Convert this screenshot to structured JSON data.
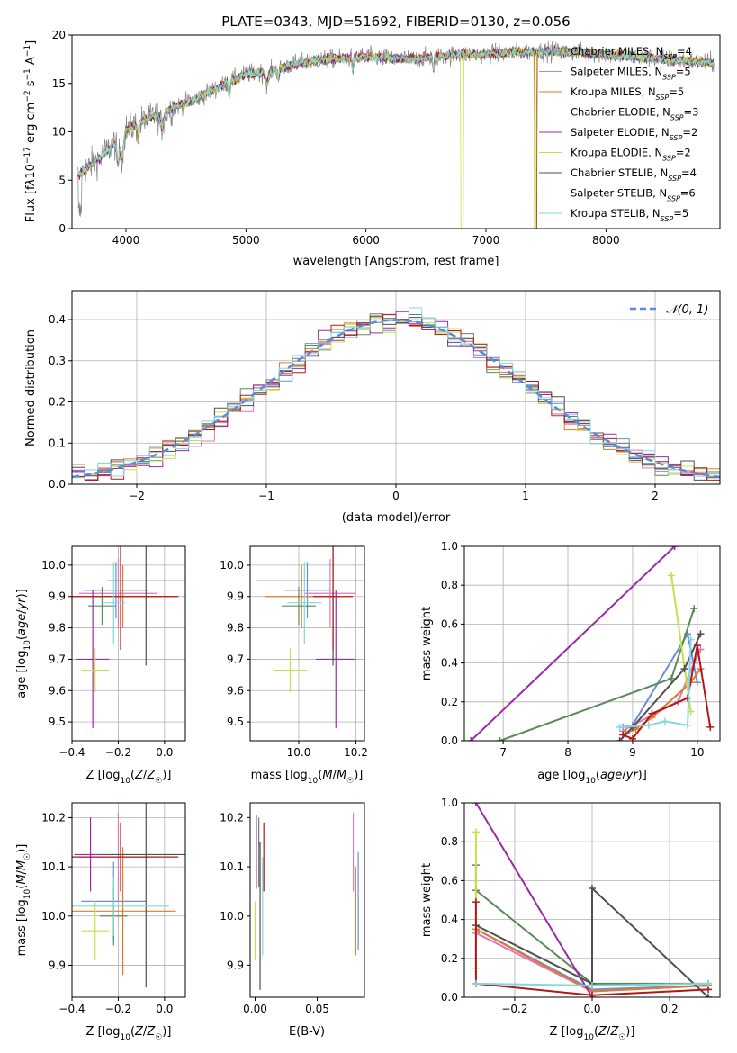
{
  "palette": [
    "#6a8fd6",
    "#e07ab8",
    "#e07a28",
    "#5a8a5a",
    "#9b2aa8",
    "#c8e048",
    "#505050",
    "#b01818",
    "#80d8e0"
  ],
  "chart_data": [
    {
      "id": "spectrum",
      "type": "line",
      "title": "PLATE=0343, MJD=51692, FIBERID=0130, z=0.056",
      "xlabel": "wavelength [Angstrom, rest frame]",
      "ylabel": "Flux [fλ10^-17 erg cm^-2 s^-1 A^-1]",
      "xlim": [
        3550,
        8950
      ],
      "ylim": [
        0,
        20
      ],
      "xticks": [
        4000,
        5000,
        6000,
        7000,
        8000
      ],
      "yticks": [
        0,
        5,
        10,
        15,
        20
      ],
      "legend_position": "right",
      "legend": [
        "Chabrier MILES, N_SSP=4",
        "Salpeter MILES, N_SSP=5",
        "Kroupa MILES, N_SSP=5",
        "Chabrier ELODIE, N_SSP=3",
        "Salpeter ELODIE, N_SSP=2",
        "Kroupa ELODIE, N_SSP=2",
        "Chabrier STELIB, N_SSP=4",
        "Salpeter STELIB, N_SSP=6",
        "Kroupa STELIB, N_SSP=5"
      ],
      "continuum": [
        [
          3600,
          5.5
        ],
        [
          3700,
          6.5
        ],
        [
          3800,
          7.5
        ],
        [
          3900,
          8.8
        ],
        [
          4000,
          10.2
        ],
        [
          4200,
          11.5
        ],
        [
          4400,
          12.5
        ],
        [
          4600,
          13.5
        ],
        [
          4800,
          14.8
        ],
        [
          5000,
          16.0
        ],
        [
          5200,
          16.2
        ],
        [
          5400,
          17.0
        ],
        [
          5600,
          17.4
        ],
        [
          5800,
          17.6
        ],
        [
          6000,
          17.8
        ],
        [
          6200,
          17.6
        ],
        [
          6400,
          17.5
        ],
        [
          6600,
          17.8
        ],
        [
          6800,
          18.0
        ],
        [
          7000,
          18.0
        ],
        [
          7200,
          18.2
        ],
        [
          7400,
          18.3
        ],
        [
          7600,
          18.3
        ],
        [
          7800,
          18.2
        ],
        [
          8000,
          18.0
        ],
        [
          8200,
          17.8
        ],
        [
          8400,
          17.6
        ],
        [
          8600,
          17.4
        ],
        [
          8800,
          17.2
        ],
        [
          8900,
          17.1
        ]
      ]
    },
    {
      "id": "residuals",
      "type": "histogram",
      "xlabel": "(data-model)/error",
      "ylabel": "Normed distribution",
      "xlim": [
        -2.5,
        2.5
      ],
      "ylim": [
        0,
        0.47
      ],
      "xticks": [
        -2,
        -1,
        0,
        1,
        2
      ],
      "yticks": [
        0.0,
        0.1,
        0.2,
        0.3,
        0.4
      ],
      "grid": true,
      "legend": [
        "𝒩(0, 1)"
      ],
      "legend_position": "top-right",
      "bin_width": 0.1
    },
    {
      "id": "age-vs-Z",
      "type": "errorbar",
      "xlabel": "Z [log10(Z/Z☉)]",
      "ylabel": "age [log10(age/yr)]",
      "xlim": [
        -0.4,
        0.09
      ],
      "ylim": [
        9.44,
        10.06
      ],
      "xticks": [
        -0.4,
        -0.2,
        0.0
      ],
      "yticks": [
        9.5,
        9.6,
        9.7,
        9.8,
        9.9,
        10.0
      ],
      "grid": true,
      "points": [
        {
          "x": -0.21,
          "xerr": 0.14,
          "y": 9.92,
          "yerr": 0.09
        },
        {
          "x": -0.2,
          "xerr": 0.17,
          "y": 9.91,
          "yerr": 0.11
        },
        {
          "x": -0.18,
          "xerr": 0.23,
          "y": 9.9,
          "yerr": 0.1
        },
        {
          "x": -0.27,
          "xerr": 0.06,
          "y": 9.87,
          "yerr": 0.06
        },
        {
          "x": -0.31,
          "xerr": 0.07,
          "y": 9.7,
          "yerr": 0.22
        },
        {
          "x": -0.3,
          "xerr": 0.06,
          "y": 9.665,
          "yerr": 0.07
        },
        {
          "x": -0.08,
          "xerr": 0.17,
          "y": 9.95,
          "yerr": 0.27
        },
        {
          "x": -0.19,
          "xerr": 0.25,
          "y": 9.9,
          "yerr": 0.17
        },
        {
          "x": -0.22,
          "xerr": 0.05,
          "y": 9.88,
          "yerr": 0.13
        }
      ]
    },
    {
      "id": "age-vs-mass",
      "type": "errorbar",
      "xlabel": "mass [log10(M/M☉)]",
      "ylabel": "",
      "xlim": [
        9.83,
        10.23
      ],
      "ylim": [
        9.44,
        10.06
      ],
      "xticks": [
        10.0,
        10.2
      ],
      "yticks": [
        9.5,
        9.6,
        9.7,
        9.8,
        9.9,
        10.0
      ],
      "grid": true,
      "points": [
        {
          "x": 10.03,
          "xerr": 0.08,
          "y": 9.92,
          "yerr": 0.09
        },
        {
          "x": 10.11,
          "xerr": 0.09,
          "y": 9.91,
          "yerr": 0.11
        },
        {
          "x": 10.01,
          "xerr": 0.13,
          "y": 9.9,
          "yerr": 0.1
        },
        {
          "x": 10.0,
          "xerr": 0.06,
          "y": 9.87,
          "yerr": 0.06
        },
        {
          "x": 10.13,
          "xerr": 0.07,
          "y": 9.7,
          "yerr": 0.22
        },
        {
          "x": 9.97,
          "xerr": 0.06,
          "y": 9.665,
          "yerr": 0.07
        },
        {
          "x": 10.12,
          "xerr": 0.27,
          "y": 9.95,
          "yerr": 0.27
        },
        {
          "x": 10.12,
          "xerr": 0.07,
          "y": 9.9,
          "yerr": 0.17
        },
        {
          "x": 10.02,
          "xerr": 0.06,
          "y": 9.88,
          "yerr": 0.13
        }
      ]
    },
    {
      "id": "weight-vs-age",
      "type": "line",
      "xlabel": "age [log10(age/yr)]",
      "ylabel": "mass weight",
      "xlim": [
        6.4,
        10.35
      ],
      "ylim": [
        0,
        1.0
      ],
      "xticks": [
        7,
        8,
        9,
        10
      ],
      "yticks": [
        0.0,
        0.2,
        0.4,
        0.6,
        0.8,
        1.0
      ],
      "grid": true,
      "series": [
        {
          "points": [
            [
              8.85,
              0.07
            ],
            [
              9.0,
              0.08
            ],
            [
              9.85,
              0.55
            ],
            [
              10.0,
              0.3
            ]
          ]
        },
        {
          "points": [
            [
              8.85,
              0.05
            ],
            [
              9.0,
              0.08
            ],
            [
              9.7,
              0.2
            ],
            [
              9.95,
              0.4
            ],
            [
              10.05,
              0.47
            ]
          ]
        },
        {
          "points": [
            [
              8.9,
              0.04
            ],
            [
              9.05,
              0.06
            ],
            [
              9.3,
              0.12
            ],
            [
              9.9,
              0.3
            ],
            [
              10.05,
              0.37
            ]
          ]
        },
        {
          "points": [
            [
              6.95,
              0.0
            ],
            [
              9.6,
              0.32
            ],
            [
              9.95,
              0.68
            ]
          ]
        },
        {
          "points": [
            [
              6.5,
              0.0
            ],
            [
              9.65,
              1.0
            ]
          ]
        },
        {
          "points": [
            [
              9.6,
              0.85
            ],
            [
              9.9,
              0.15
            ]
          ]
        },
        {
          "points": [
            [
              8.8,
              0.0
            ],
            [
              9.0,
              0.07
            ],
            [
              9.8,
              0.37
            ],
            [
              10.05,
              0.55
            ]
          ]
        },
        {
          "points": [
            [
              8.85,
              0.03
            ],
            [
              9.0,
              0.01
            ],
            [
              9.3,
              0.14
            ],
            [
              9.85,
              0.22
            ],
            [
              10.0,
              0.49
            ],
            [
              10.2,
              0.07
            ]
          ]
        },
        {
          "points": [
            [
              8.8,
              0.07
            ],
            [
              9.25,
              0.08
            ],
            [
              9.5,
              0.1
            ],
            [
              9.85,
              0.08
            ],
            [
              9.9,
              0.52
            ]
          ]
        }
      ]
    },
    {
      "id": "mass-vs-Z",
      "type": "errorbar",
      "xlabel": "Z [log10(Z/Z☉)]",
      "ylabel": "mass [log10(M/M☉)]",
      "xlim": [
        -0.4,
        0.09
      ],
      "ylim": [
        9.835,
        10.23
      ],
      "xticks": [
        -0.4,
        -0.2,
        0.0
      ],
      "yticks": [
        9.9,
        10.0,
        10.1,
        10.2
      ],
      "grid": true,
      "points": [
        {
          "x": -0.22,
          "xerr": 0.14,
          "y": 10.03,
          "yerr": 0.08
        },
        {
          "x": -0.2,
          "xerr": 0.17,
          "y": 10.12,
          "yerr": 0.09
        },
        {
          "x": -0.18,
          "xerr": 0.23,
          "y": 10.01,
          "yerr": 0.13
        },
        {
          "x": -0.22,
          "xerr": 0.06,
          "y": 10.0,
          "yerr": 0.06
        },
        {
          "x": -0.32,
          "xerr": 0.07,
          "y": 10.125,
          "yerr": 0.075
        },
        {
          "x": -0.3,
          "xerr": 0.06,
          "y": 9.97,
          "yerr": 0.06
        },
        {
          "x": -0.08,
          "xerr": 0.17,
          "y": 10.125,
          "yerr": 0.27
        },
        {
          "x": -0.19,
          "xerr": 0.25,
          "y": 10.12,
          "yerr": 0.07
        },
        {
          "x": -0.22,
          "xerr": 0.24,
          "y": 10.02,
          "yerr": 0.06
        }
      ]
    },
    {
      "id": "mass-vs-EBV",
      "type": "errorbar",
      "xlabel": "E(B-V)",
      "ylabel": "",
      "xlim": [
        -0.004,
        0.088
      ],
      "ylim": [
        9.835,
        10.23
      ],
      "xticks": [
        0.0,
        0.05
      ],
      "yticks": [
        9.9,
        10.0,
        10.1,
        10.2
      ],
      "grid": false,
      "points": [
        {
          "x": 0.083,
          "y": 10.03,
          "yerr": 0.1
        },
        {
          "x": 0.079,
          "y": 10.13,
          "yerr": 0.08
        },
        {
          "x": 0.081,
          "y": 10.01,
          "yerr": 0.09
        },
        {
          "x": 0.003,
          "y": 10.13,
          "yerr": 0.07
        },
        {
          "x": 0.001,
          "y": 10.13,
          "yerr": 0.075
        },
        {
          "x": 0.0,
          "y": 9.97,
          "yerr": 0.06
        },
        {
          "x": 0.004,
          "y": 10.0,
          "yerr": 0.15
        },
        {
          "x": 0.007,
          "y": 10.12,
          "yerr": 0.07
        },
        {
          "x": 0.006,
          "y": 10.02,
          "yerr": 0.1
        }
      ]
    },
    {
      "id": "weight-vs-Z",
      "type": "line",
      "xlabel": "Z [log10(Z/Z☉)]",
      "ylabel": "mass weight",
      "xlim": [
        -0.33,
        0.33
      ],
      "ylim": [
        0,
        1.0
      ],
      "xticks": [
        -0.2,
        0.0,
        0.2
      ],
      "yticks": [
        0.0,
        0.2,
        0.4,
        0.6,
        0.8,
        1.0
      ],
      "grid": true,
      "series": [
        {
          "points": [
            [
              -0.3,
              0.35
            ],
            [
              0.0,
              0.04
            ],
            [
              0.3,
              0.06
            ]
          ]
        },
        {
          "points": [
            [
              -0.3,
              0.33
            ],
            [
              0.0,
              0.03
            ],
            [
              0.3,
              0.06
            ]
          ]
        },
        {
          "points": [
            [
              -0.3,
              0.35
            ],
            [
              0.0,
              0.03
            ],
            [
              0.3,
              0.06
            ]
          ]
        },
        {
          "points": [
            [
              -0.3,
              0.68
            ],
            [
              -0.3,
              0.55
            ],
            [
              0.0,
              0.07
            ],
            [
              0.3,
              0.07
            ]
          ]
        },
        {
          "points": [
            [
              -0.3,
              1.0
            ],
            [
              0.0,
              0.0
            ]
          ]
        },
        {
          "points": [
            [
              -0.3,
              0.85
            ],
            [
              -0.3,
              0.15
            ]
          ]
        },
        {
          "points": [
            [
              -0.3,
              0.37
            ],
            [
              0.0,
              0.07
            ],
            [
              0.0,
              0.56
            ],
            [
              0.3,
              0.0
            ]
          ]
        },
        {
          "points": [
            [
              -0.3,
              0.49
            ],
            [
              -0.3,
              0.07
            ],
            [
              0.0,
              0.01
            ],
            [
              0.3,
              0.04
            ]
          ]
        },
        {
          "points": [
            [
              -0.3,
              0.07
            ],
            [
              0.0,
              0.06
            ],
            [
              0.3,
              0.07
            ]
          ]
        }
      ]
    }
  ]
}
